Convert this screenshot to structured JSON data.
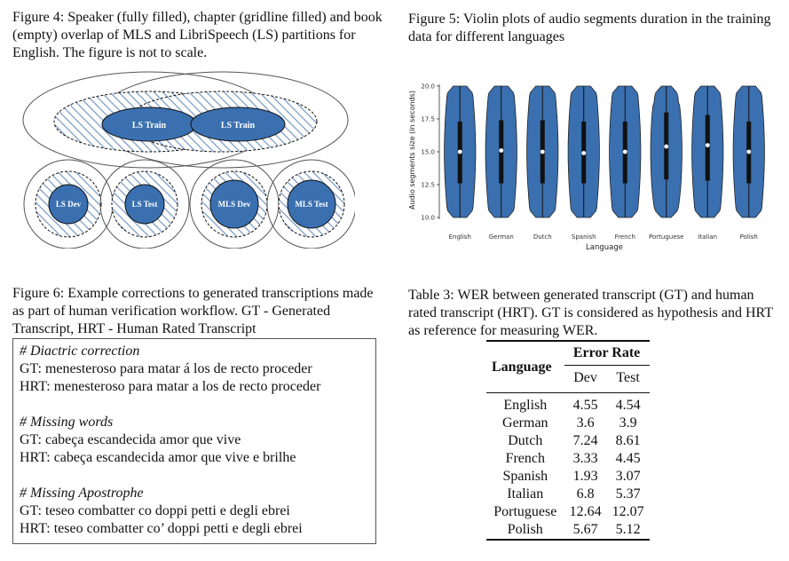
{
  "figure4": {
    "caption": "Figure 4: Speaker (fully filled), chapter (gridline filled) and book (empty) overlap of MLS and LibriSpeech (LS) partitions for English. The figure is not to scale.",
    "labels": {
      "ls_train": "LS Train",
      "mls_train": "LS Train",
      "ls_dev": "LS Dev",
      "ls_test": "LS Test",
      "mls_dev": "MLS Dev",
      "mls_test": "MLS Test"
    },
    "colors": {
      "fill": "#3a70b0",
      "hatch": "#7a9cc4"
    }
  },
  "figure5": {
    "caption": "Figure 5: Violin plots of audio segments duration in the training data for different languages"
  },
  "chart_data": {
    "type": "violin",
    "title": "",
    "xlabel": "Language",
    "ylabel": "Audio segments size (in seconds)",
    "ylim": [
      10.0,
      20.0
    ],
    "yticks": [
      "10.0",
      "12.5",
      "15.0",
      "17.5",
      "20.0"
    ],
    "ytick_values": [
      10.0,
      12.5,
      15.0,
      17.5,
      20.0
    ],
    "categories": [
      "English",
      "German",
      "Dutch",
      "Spanish",
      "French",
      "Portuguese",
      "Italian",
      "Polish"
    ],
    "median": [
      15.0,
      15.1,
      15.0,
      14.9,
      15.0,
      15.4,
      15.5,
      15.0
    ],
    "q1": [
      12.6,
      12.6,
      12.6,
      12.6,
      12.6,
      12.9,
      12.8,
      12.6
    ],
    "q3": [
      17.3,
      17.4,
      17.4,
      17.3,
      17.3,
      18.0,
      17.8,
      17.3
    ],
    "min": [
      10.0,
      10.0,
      10.0,
      10.0,
      10.0,
      10.0,
      10.0,
      10.0
    ],
    "max": [
      20.0,
      20.0,
      20.0,
      20.0,
      20.0,
      20.0,
      20.0,
      20.0
    ],
    "color": "#3a70b0"
  },
  "figure6": {
    "caption": "Figure 6: Example corrections to generated transcriptions made as part of human verification workflow. GT - Generated Transcript, HRT - Human Rated Transcript",
    "groups": [
      {
        "header": "# Diactric correction",
        "gt": "GT: menesteroso para matar á los de recto proceder",
        "hrt": "HRT: menesteroso para matar a los de recto proceder"
      },
      {
        "header": "# Missing words",
        "gt": "GT: cabeça escandecida amor que vive",
        "hrt": "HRT: cabeça escandecida amor que vive e brilhe"
      },
      {
        "header": "# Missing Apostrophe",
        "gt": "GT: teseo combatter co doppi petti e degli ebrei",
        "hrt": "HRT: teseo combatter co’ doppi petti e degli ebrei"
      }
    ]
  },
  "table3": {
    "caption": "Table 3: WER between generated transcript (GT) and human rated transcript (HRT). GT is considered as hypothesis and HRT as reference for measuring WER.",
    "col_language": "Language",
    "col_group": "Error Rate",
    "col_dev": "Dev",
    "col_test": "Test",
    "rows": [
      {
        "lang": "English",
        "dev": "4.55",
        "test": "4.54"
      },
      {
        "lang": "German",
        "dev": "3.6",
        "test": "3.9"
      },
      {
        "lang": "Dutch",
        "dev": "7.24",
        "test": "8.61"
      },
      {
        "lang": "French",
        "dev": "3.33",
        "test": "4.45"
      },
      {
        "lang": "Spanish",
        "dev": "1.93",
        "test": "3.07"
      },
      {
        "lang": "Italian",
        "dev": "6.8",
        "test": "5.37"
      },
      {
        "lang": "Portuguese",
        "dev": "12.64",
        "test": "12.07"
      },
      {
        "lang": "Polish",
        "dev": "5.67",
        "test": "5.12"
      }
    ]
  }
}
